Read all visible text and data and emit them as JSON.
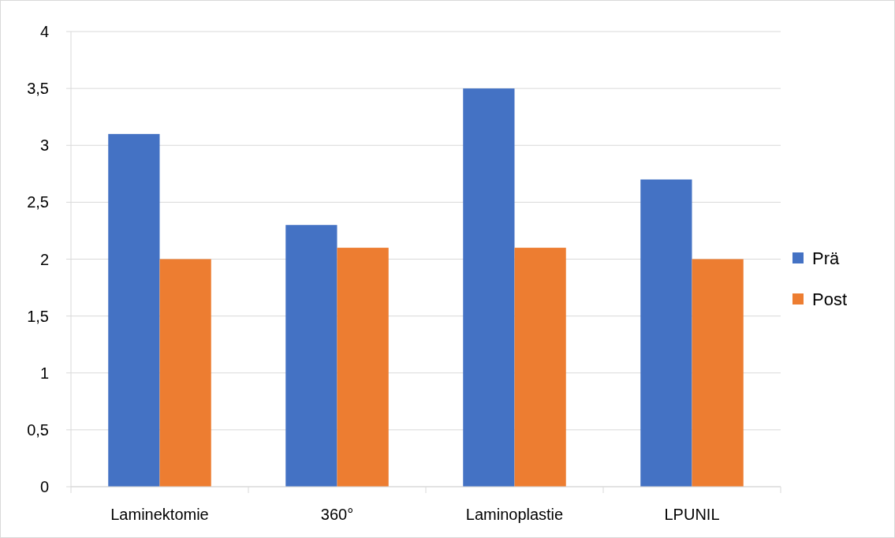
{
  "chart_data": {
    "type": "bar",
    "categories": [
      "Laminektomie",
      "360°",
      "Laminoplastie",
      "LPUNIL"
    ],
    "series": [
      {
        "name": "Prä",
        "color": "#4472c4",
        "values": [
          3.1,
          2.3,
          3.5,
          2.7
        ]
      },
      {
        "name": "Post",
        "color": "#ed7d31",
        "values": [
          2.0,
          2.1,
          2.1,
          2.0
        ]
      }
    ],
    "ylim": [
      0,
      4
    ],
    "yticks": [
      0,
      {
        "value": 0.5,
        "label": "0,5"
      },
      1,
      {
        "value": 1.5,
        "label": "1,5"
      },
      2,
      {
        "value": 2.5,
        "label": "2,5"
      },
      3,
      {
        "value": 3.5,
        "label": "3,5"
      },
      4
    ],
    "grid": "y",
    "legend": "right"
  }
}
